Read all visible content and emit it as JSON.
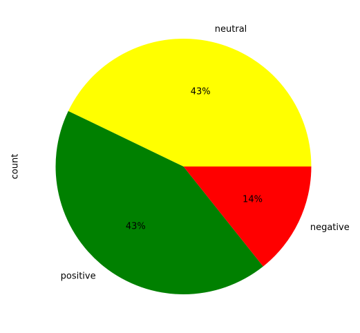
{
  "chart_data": {
    "type": "pie",
    "ylabel": "count",
    "start_angle_deg": 0,
    "direction": "counterclockwise",
    "slices": [
      {
        "label": "neutral",
        "value": 3,
        "percent_label": "43%",
        "color": "#ffff00"
      },
      {
        "label": "positive",
        "value": 3,
        "percent_label": "43%",
        "color": "#008000"
      },
      {
        "label": "negative",
        "value": 1,
        "percent_label": "14%",
        "color": "#ff0000"
      }
    ]
  }
}
